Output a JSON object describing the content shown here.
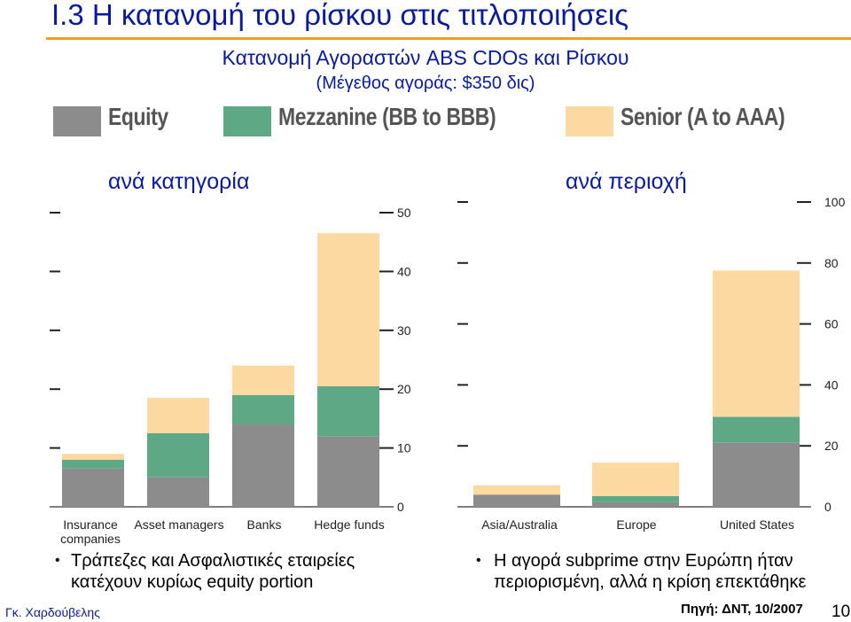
{
  "slide": {
    "title": "I.3 Η κατανομή του ρίσκου στις τιτλοποιήσεις",
    "subtitle": "Κατανομή Αγοραστών ABS CDOs και Ρίσκου",
    "market_size": "(Μέγεθος αγοράς: $350 δις)",
    "author": "Γκ. Χαρδούβελης",
    "source": "Πηγή: ΔΝΤ, 10/2007",
    "page_number": "10"
  },
  "legend": [
    {
      "label": "Equity",
      "color": "#8c8c8c"
    },
    {
      "label": "Mezzanine (BB to BBB)",
      "color": "#5fa886"
    },
    {
      "label": "Senior (A to AAA)",
      "color": "#fcd9a0"
    }
  ],
  "chart_data": [
    {
      "type": "bar",
      "stacked": true,
      "title": "ανά κατηγορία",
      "categories": [
        "Insurance companies",
        "Asset managers",
        "Banks",
        "Hedge funds"
      ],
      "category_lines": [
        [
          "Insurance",
          "companies"
        ],
        [
          "Asset managers"
        ],
        [
          "Banks"
        ],
        [
          "Hedge funds"
        ]
      ],
      "series": [
        {
          "name": "Equity",
          "values": [
            6.5,
            5,
            14,
            12
          ]
        },
        {
          "name": "Mezzanine (BB to BBB)",
          "values": [
            1.5,
            7.5,
            5,
            8.5
          ]
        },
        {
          "name": "Senior (A to AAA)",
          "values": [
            1,
            6,
            5,
            26
          ]
        }
      ],
      "yticks": [
        0,
        10,
        20,
        30,
        40,
        50
      ],
      "ylim": [
        0,
        50
      ],
      "axis_side": "right"
    },
    {
      "type": "bar",
      "stacked": true,
      "title": "ανά περιοχή",
      "categories": [
        "Asia/Australia",
        "Europe",
        "United States"
      ],
      "category_lines": [
        [
          "Asia/Australia"
        ],
        [
          "Europe"
        ],
        [
          "United States"
        ]
      ],
      "series": [
        {
          "name": "Equity",
          "values": [
            4,
            1.5,
            21
          ]
        },
        {
          "name": "Mezzanine (BB to BBB)",
          "values": [
            0,
            2,
            8.5
          ]
        },
        {
          "name": "Senior (A to AAA)",
          "values": [
            3,
            11,
            48
          ]
        }
      ],
      "yticks": [
        0,
        20,
        40,
        60,
        80,
        100
      ],
      "ylim": [
        0,
        100
      ],
      "axis_side": "right"
    }
  ],
  "bullets": [
    {
      "lines": [
        "Τράπεζες και Ασφαλιστικές εταιρείες",
        "κατέχουν κυρίως equity portion"
      ]
    },
    {
      "lines": [
        "Η αγορά subprime στην Ευρώπη ήταν",
        "περιορισμένη, αλλά η κρίση επεκτάθηκε"
      ]
    }
  ]
}
